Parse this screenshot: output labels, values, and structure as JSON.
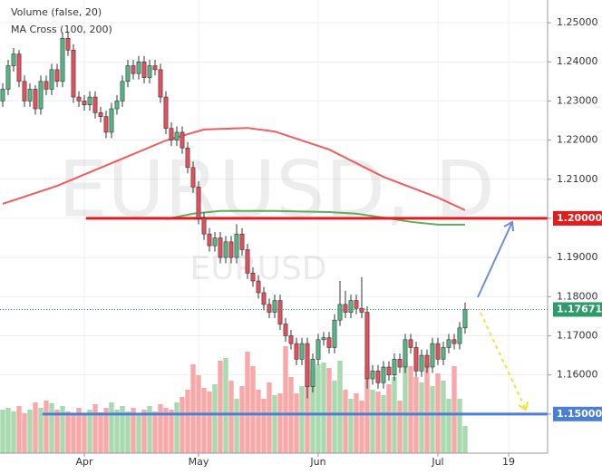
{
  "chart_data": {
    "type": "candlestick",
    "indicators": [
      "Volume (false, 20)",
      "MA Cross (100, 200)"
    ],
    "watermark": "EURUSD, D",
    "watermark_sub": "EURUSD",
    "up_color": "#53b987",
    "down_color": "#eb4d5c",
    "volume_up_color": "#a9d9ae",
    "volume_down_color": "#f7a9a9",
    "xlim": [
      -0.5,
      100.17
    ],
    "ylim": [
      1.14,
      1.2558
    ],
    "volume_lim": [
      0,
      160
    ],
    "grid": true,
    "xticks": [
      {
        "value": 15,
        "label": "Apr"
      },
      {
        "value": 36,
        "label": "May"
      },
      {
        "value": 58,
        "label": "Jun"
      },
      {
        "value": 80,
        "label": "Jul"
      },
      {
        "value": 93,
        "label": "19"
      }
    ],
    "yticks": [
      {
        "value": 1.15,
        "label": "1.15000"
      },
      {
        "value": 1.16,
        "label": "1.16000"
      },
      {
        "value": 1.17,
        "label": "1.17000"
      },
      {
        "value": 1.18,
        "label": "1.18000"
      },
      {
        "value": 1.19,
        "label": "1.19000"
      },
      {
        "value": 1.2,
        "label": "1.20000"
      },
      {
        "value": 1.21,
        "label": "1.21000"
      },
      {
        "value": 1.22,
        "label": "1.22000"
      },
      {
        "value": 1.23,
        "label": "1.23000"
      },
      {
        "value": 1.24,
        "label": "1.24000"
      },
      {
        "value": 1.25,
        "label": "1.25000"
      }
    ],
    "candles": [
      [
        1.23,
        1.2345,
        1.2285,
        1.233
      ],
      [
        1.233,
        1.2405,
        1.2315,
        1.239
      ],
      [
        1.239,
        1.2435,
        1.2375,
        1.242
      ],
      [
        1.242,
        1.243,
        1.2335,
        1.235
      ],
      [
        1.235,
        1.2365,
        1.2285,
        1.23
      ],
      [
        1.23,
        1.2345,
        1.2285,
        1.233
      ],
      [
        1.233,
        1.234,
        1.2265,
        1.228
      ],
      [
        1.228,
        1.2365,
        1.2265,
        1.235
      ],
      [
        1.235,
        1.2365,
        1.2315,
        1.233
      ],
      [
        1.233,
        1.2395,
        1.2315,
        1.238
      ],
      [
        1.238,
        1.2395,
        1.2335,
        1.235
      ],
      [
        1.235,
        1.2475,
        1.2335,
        1.246
      ],
      [
        1.246,
        1.2475,
        1.2415,
        1.243
      ],
      [
        1.243,
        1.2445,
        1.2295,
        1.231
      ],
      [
        1.231,
        1.2325,
        1.2285,
        1.23
      ],
      [
        1.23,
        1.2315,
        1.2275,
        1.229
      ],
      [
        1.229,
        1.2325,
        1.2275,
        1.231
      ],
      [
        1.231,
        1.2325,
        1.2255,
        1.227
      ],
      [
        1.227,
        1.2285,
        1.2245,
        1.226
      ],
      [
        1.226,
        1.2275,
        1.2205,
        1.222
      ],
      [
        1.222,
        1.2295,
        1.2205,
        1.228
      ],
      [
        1.228,
        1.2315,
        1.2265,
        1.23
      ],
      [
        1.23,
        1.2365,
        1.2285,
        1.235
      ],
      [
        1.235,
        1.2405,
        1.2335,
        1.239
      ],
      [
        1.239,
        1.2405,
        1.2355,
        1.237
      ],
      [
        1.237,
        1.2415,
        1.2355,
        1.24
      ],
      [
        1.24,
        1.2415,
        1.2345,
        1.236
      ],
      [
        1.236,
        1.2405,
        1.2345,
        1.239
      ],
      [
        1.239,
        1.2405,
        1.2365,
        1.238
      ],
      [
        1.238,
        1.2395,
        1.2295,
        1.231
      ],
      [
        1.231,
        1.2325,
        1.2215,
        1.223
      ],
      [
        1.223,
        1.2245,
        1.2185,
        1.22
      ],
      [
        1.22,
        1.2235,
        1.2185,
        1.222
      ],
      [
        1.222,
        1.2235,
        1.2165,
        1.218
      ],
      [
        1.218,
        1.2195,
        1.2115,
        1.213
      ],
      [
        1.213,
        1.2145,
        1.2065,
        1.208
      ],
      [
        1.208,
        1.2095,
        1.1985,
        1.2
      ],
      [
        1.2,
        1.2015,
        1.1945,
        1.196
      ],
      [
        1.196,
        1.1975,
        1.1915,
        1.193
      ],
      [
        1.193,
        1.1965,
        1.1915,
        1.195
      ],
      [
        1.195,
        1.1965,
        1.1885,
        1.19
      ],
      [
        1.19,
        1.1955,
        1.1885,
        1.194
      ],
      [
        1.194,
        1.1955,
        1.1885,
        1.19
      ],
      [
        1.19,
        1.1985,
        1.1885,
        1.196
      ],
      [
        1.196,
        1.1975,
        1.1905,
        1.192
      ],
      [
        1.192,
        1.1935,
        1.1845,
        1.186
      ],
      [
        1.186,
        1.1875,
        1.1825,
        1.184
      ],
      [
        1.184,
        1.1855,
        1.1795,
        1.181
      ],
      [
        1.181,
        1.1825,
        1.1765,
        1.178
      ],
      [
        1.178,
        1.1795,
        1.1745,
        1.176
      ],
      [
        1.176,
        1.1805,
        1.1745,
        1.179
      ],
      [
        1.179,
        1.1805,
        1.1715,
        1.173
      ],
      [
        1.173,
        1.1745,
        1.1685,
        1.17
      ],
      [
        1.17,
        1.1715,
        1.1665,
        1.168
      ],
      [
        1.168,
        1.1695,
        1.1625,
        1.164
      ],
      [
        1.164,
        1.1695,
        1.1625,
        1.168
      ],
      [
        1.168,
        1.1695,
        1.154,
        1.157
      ],
      [
        1.157,
        1.1655,
        1.1555,
        1.164
      ],
      [
        1.164,
        1.1705,
        1.1625,
        1.169
      ],
      [
        1.169,
        1.171,
        1.1675,
        1.1695
      ],
      [
        1.1695,
        1.171,
        1.1655,
        1.167
      ],
      [
        1.167,
        1.1755,
        1.1655,
        1.174
      ],
      [
        1.174,
        1.184,
        1.1725,
        1.178
      ],
      [
        1.178,
        1.1815,
        1.1745,
        1.176
      ],
      [
        1.176,
        1.1805,
        1.1745,
        1.179
      ],
      [
        1.179,
        1.1805,
        1.1755,
        1.177
      ],
      [
        1.177,
        1.185,
        1.1745,
        1.176
      ],
      [
        1.176,
        1.1775,
        1.1565,
        1.159
      ],
      [
        1.159,
        1.1625,
        1.1575,
        1.161
      ],
      [
        1.161,
        1.1625,
        1.1565,
        1.158
      ],
      [
        1.158,
        1.1635,
        1.1565,
        1.162
      ],
      [
        1.162,
        1.1635,
        1.1585,
        1.16
      ],
      [
        1.16,
        1.1655,
        1.1585,
        1.164
      ],
      [
        1.164,
        1.1655,
        1.1605,
        1.162
      ],
      [
        1.162,
        1.1705,
        1.1605,
        1.169
      ],
      [
        1.169,
        1.1705,
        1.1655,
        1.167
      ],
      [
        1.167,
        1.1685,
        1.1595,
        1.161
      ],
      [
        1.161,
        1.1665,
        1.1595,
        1.165
      ],
      [
        1.165,
        1.1665,
        1.1605,
        1.162
      ],
      [
        1.162,
        1.1695,
        1.1605,
        1.168
      ],
      [
        1.168,
        1.1695,
        1.1625,
        1.164
      ],
      [
        1.164,
        1.1685,
        1.1625,
        1.167
      ],
      [
        1.167,
        1.1705,
        1.1655,
        1.169
      ],
      [
        1.169,
        1.1705,
        1.1665,
        1.168
      ],
      [
        1.168,
        1.1735,
        1.1665,
        1.172
      ],
      [
        1.172,
        1.1785,
        1.1705,
        1.1767
      ]
    ],
    "volume": [
      48,
      50,
      46,
      52,
      44,
      48,
      56,
      50,
      58,
      55,
      48,
      52,
      46,
      44,
      50,
      42,
      48,
      54,
      45,
      50,
      56,
      48,
      52,
      46,
      50,
      44,
      48,
      52,
      46,
      54,
      50,
      48,
      56,
      62,
      70,
      98,
      86,
      72,
      68,
      76,
      102,
      105,
      80,
      60,
      74,
      112,
      96,
      70,
      60,
      78,
      64,
      66,
      118,
      84,
      66,
      74,
      102,
      92,
      98,
      100,
      94,
      80,
      102,
      70,
      60,
      66,
      58,
      96,
      70,
      68,
      64,
      76,
      84,
      58,
      100,
      96,
      84,
      78,
      100,
      74,
      88,
      80,
      60,
      96,
      60,
      30
    ],
    "ma": [
      {
        "color": "#f25c5c",
        "x": [
          0,
          10,
          20,
          30,
          37,
          45,
          50,
          60,
          70,
          80,
          85
        ],
        "values": [
          1.2037,
          1.2083,
          1.2141,
          1.2199,
          1.2227,
          1.2231,
          1.2222,
          1.2176,
          1.2106,
          1.2053,
          1.2021
        ]
      },
      {
        "color": "#5fae5f",
        "x": [
          30,
          35,
          40,
          50,
          60,
          65,
          70,
          75,
          80,
          85
        ],
        "values": [
          1.1998,
          1.2012,
          1.2019,
          1.2019,
          1.2016,
          1.2012,
          1.2002,
          1.1991,
          1.1984,
          1.1984
        ]
      }
    ],
    "hlines": [
      {
        "value": 1.2,
        "label": "1.20000",
        "color": "#e31b1b",
        "from": 15.3
      },
      {
        "value": 1.15,
        "label": "1.15000",
        "color": "#4a7fd6",
        "from": 7.3
      }
    ],
    "last_price": {
      "value": 1.17671,
      "label": "1.17671",
      "color": "#2e9c6a"
    }
  }
}
